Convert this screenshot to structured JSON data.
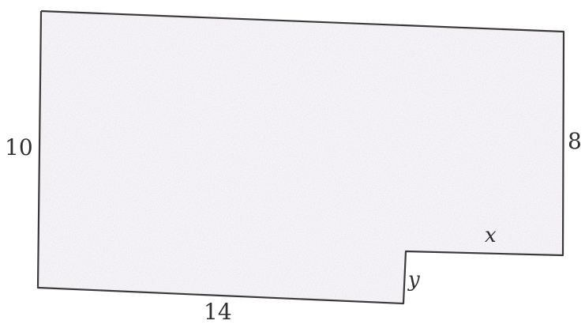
{
  "figure": {
    "shape": "L-shaped polygon (rectangle with notch at bottom-right)",
    "labels": {
      "left_side": "10",
      "right_side": "8",
      "bottom_side": "14",
      "notch_horizontal": "x",
      "notch_vertical": "y"
    },
    "colors": {
      "outline": "#3a3a3a",
      "fill": "#f6f4f7",
      "speckle": "#c9bfd0",
      "text": "#2f2f2f"
    }
  }
}
